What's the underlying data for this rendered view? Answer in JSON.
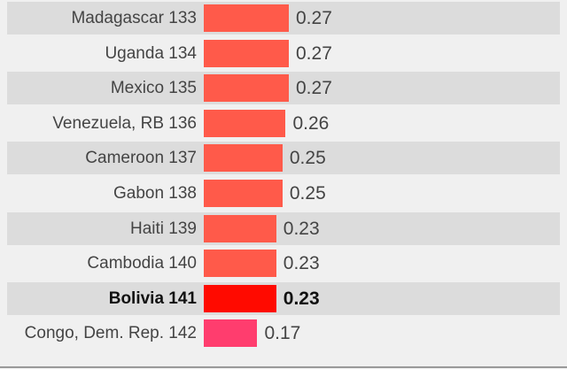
{
  "chart_data": {
    "type": "bar",
    "orientation": "horizontal",
    "categories": [
      "Madagascar 133",
      "Uganda 134",
      "Mexico 135",
      "Venezuela, RB 136",
      "Cameroon 137",
      "Gabon 138",
      "Haiti 139",
      "Cambodia 140",
      "Bolivia 141",
      "Congo, Dem. Rep. 142"
    ],
    "values": [
      0.27,
      0.27,
      0.27,
      0.26,
      0.25,
      0.25,
      0.23,
      0.23,
      0.23,
      0.17
    ],
    "value_labels": [
      "0.27",
      "0.27",
      "0.27",
      "0.26",
      "0.25",
      "0.25",
      "0.23",
      "0.23",
      "0.23",
      "0.17"
    ],
    "highlight": "Bolivia 141",
    "colors": {
      "default": "#ff5a4a",
      "highlight": "#ff0a00",
      "low": "#ff3d6e",
      "stripe": "#dcdcdc",
      "background": "#f0f0f0"
    },
    "xlim": [
      0,
      0.27
    ],
    "grid": false
  }
}
